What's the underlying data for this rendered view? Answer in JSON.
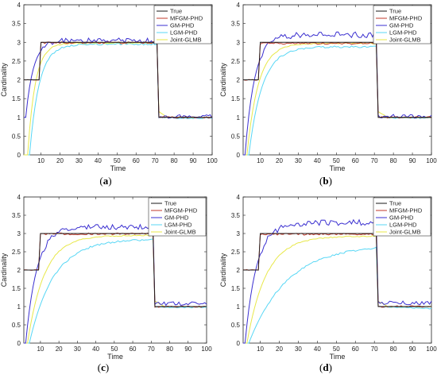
{
  "colors": {
    "True": "#1a1a1a",
    "MFGM-PHD": "#c0392b",
    "GM-PHD": "#3a2fd0",
    "LGM-PHD": "#58d7f5",
    "Joint-GLMB": "#e8e84a"
  },
  "chart_data": [
    {
      "type": "line",
      "panel_label": "(a)",
      "xlabel": "Time",
      "ylabel": "Cardinality",
      "xlim": [
        1,
        100
      ],
      "ylim": [
        0,
        4
      ],
      "xticks": [
        "10",
        "20",
        "30",
        "40",
        "50",
        "60",
        "70",
        "80",
        "90",
        "100"
      ],
      "yticks": [
        "0",
        "0.5",
        "1",
        "1.5",
        "2",
        "2.5",
        "3",
        "3.5",
        "4"
      ],
      "grid": false,
      "legend_position": "top-right",
      "legend": [
        "True",
        "MFGM-PHD",
        "GM-PHD",
        "LGM-PHD",
        "Joint-GLMB"
      ],
      "params": {
        "gm_start": 1.0,
        "gm_t": 4,
        "gm_plat": 3.05,
        "gm_amp": 0.07,
        "lgm_start": 0.0,
        "lgm_t": 5,
        "lgm_plat": 2.95,
        "jg_t": 4,
        "jg_plat": 2.98,
        "mf_plat": 2.99,
        "jit_end": 1.02
      },
      "x": [
        1,
        10,
        20,
        30,
        40,
        50,
        60,
        70,
        72,
        80,
        90,
        100
      ],
      "series": [
        {
          "name": "True",
          "values": [
            2,
            3,
            3,
            3,
            3,
            3,
            3,
            3,
            1,
            1,
            1,
            1
          ]
        },
        {
          "name": "MFGM-PHD",
          "values": [
            2.0,
            3.0,
            2.99,
            2.99,
            3.0,
            2.99,
            3.0,
            2.99,
            1.02,
            1.0,
            1.0,
            1.0
          ]
        },
        {
          "name": "GM-PHD",
          "values": [
            1.0,
            2.4,
            3.1,
            3.05,
            3.1,
            3.0,
            3.05,
            3.05,
            1.05,
            1.02,
            1.0,
            1.0
          ]
        },
        {
          "name": "LGM-PHD",
          "values": [
            0.0,
            1.6,
            2.9,
            2.95,
            2.95,
            2.92,
            2.95,
            2.95,
            1.05,
            1.0,
            1.0,
            1.0
          ]
        },
        {
          "name": "Joint-GLMB",
          "values": [
            0.0,
            2.3,
            2.95,
            2.98,
            2.98,
            2.98,
            2.98,
            2.98,
            1.1,
            1.0,
            1.0,
            1.0
          ]
        }
      ]
    },
    {
      "type": "line",
      "panel_label": "(b)",
      "xlabel": "Time",
      "ylabel": "Cardinality",
      "xlim": [
        1,
        100
      ],
      "ylim": [
        0,
        4
      ],
      "xticks": [
        "10",
        "20",
        "30",
        "40",
        "50",
        "60",
        "70",
        "80",
        "90",
        "100"
      ],
      "yticks": [
        "0",
        "0.5",
        "1",
        "1.5",
        "2",
        "2.5",
        "3",
        "3.5",
        "4"
      ],
      "grid": false,
      "legend_position": "top-right",
      "legend": [
        "True",
        "MFGM-PHD",
        "GM-PHD",
        "LGM-PHD",
        "Joint-GLMB"
      ],
      "params": {
        "gm_start": 0.0,
        "gm_t": 5,
        "gm_plat": 3.2,
        "gm_amp": 0.08,
        "lgm_start": 0.0,
        "lgm_t": 7,
        "lgm_plat": 2.88,
        "jg_t": 6,
        "jg_plat": 2.97,
        "mf_plat": 2.97,
        "jit_end": 1.03
      },
      "x": [
        1,
        10,
        20,
        30,
        40,
        50,
        60,
        70,
        72,
        80,
        90,
        100
      ],
      "series": [
        {
          "name": "True",
          "values": [
            2,
            3,
            3,
            3,
            3,
            3,
            3,
            3,
            1,
            1,
            1,
            1
          ]
        },
        {
          "name": "MFGM-PHD",
          "values": [
            2.0,
            2.98,
            2.98,
            2.97,
            2.97,
            2.98,
            2.97,
            2.96,
            1.02,
            1.0,
            1.0,
            1.0
          ]
        },
        {
          "name": "GM-PHD",
          "values": [
            0.0,
            2.2,
            3.1,
            3.2,
            3.2,
            3.25,
            3.2,
            3.2,
            1.1,
            1.05,
            1.05,
            1.05
          ]
        },
        {
          "name": "LGM-PHD",
          "values": [
            0.0,
            1.2,
            2.6,
            2.85,
            2.9,
            2.88,
            2.9,
            2.9,
            1.0,
            1.0,
            1.0,
            1.0
          ]
        },
        {
          "name": "Joint-GLMB",
          "values": [
            0.0,
            1.9,
            2.85,
            2.95,
            2.97,
            2.97,
            2.97,
            2.97,
            1.05,
            1.0,
            1.0,
            1.0
          ]
        }
      ]
    },
    {
      "type": "line",
      "panel_label": "(c)",
      "xlabel": "Time",
      "ylabel": "Cardinality",
      "xlim": [
        1,
        100
      ],
      "ylim": [
        0,
        4
      ],
      "xticks": [
        "10",
        "20",
        "30",
        "40",
        "50",
        "60",
        "70",
        "80",
        "90",
        "100"
      ],
      "yticks": [
        "0",
        "0.5",
        "1",
        "1.5",
        "2",
        "2.5",
        "3",
        "3.5",
        "4"
      ],
      "grid": false,
      "legend_position": "top-right",
      "legend": [
        "True",
        "MFGM-PHD",
        "GM-PHD",
        "LGM-PHD",
        "Joint-GLMB"
      ],
      "params": {
        "gm_start": 0.0,
        "gm_t": 6,
        "gm_plat": 3.18,
        "gm_amp": 0.07,
        "lgm_start": 0.0,
        "lgm_t": 13,
        "lgm_plat": 2.85,
        "jg_t": 9,
        "jg_plat": 2.95,
        "mf_plat": 2.99,
        "jit_end": 1.08
      },
      "x": [
        1,
        10,
        20,
        30,
        40,
        50,
        60,
        70,
        72,
        80,
        90,
        100
      ],
      "series": [
        {
          "name": "True",
          "values": [
            2,
            3,
            3,
            3,
            3,
            3,
            3,
            3,
            1,
            1,
            1,
            1
          ]
        },
        {
          "name": "MFGM-PHD",
          "values": [
            2.0,
            3.0,
            2.99,
            2.99,
            2.98,
            2.99,
            2.98,
            2.98,
            1.02,
            1.0,
            1.0,
            1.0
          ]
        },
        {
          "name": "GM-PHD",
          "values": [
            0.0,
            1.7,
            2.95,
            3.1,
            3.15,
            3.2,
            3.2,
            3.25,
            1.2,
            1.1,
            1.1,
            1.05
          ]
        },
        {
          "name": "LGM-PHD",
          "values": [
            0.0,
            0.6,
            1.8,
            2.5,
            2.7,
            2.75,
            2.8,
            2.85,
            1.0,
            1.0,
            0.98,
            0.98
          ]
        },
        {
          "name": "Joint-GLMB",
          "values": [
            0.0,
            1.2,
            2.4,
            2.85,
            2.93,
            2.95,
            2.95,
            2.95,
            1.1,
            1.0,
            1.0,
            1.0
          ]
        }
      ]
    },
    {
      "type": "line",
      "panel_label": "(d)",
      "xlabel": "Time",
      "ylabel": "Cardinality",
      "xlim": [
        1,
        100
      ],
      "ylim": [
        0,
        4
      ],
      "xticks": [
        "10",
        "20",
        "30",
        "40",
        "50",
        "60",
        "70",
        "80",
        "90",
        "100"
      ],
      "yticks": [
        "0",
        "0.5",
        "1",
        "1.5",
        "2",
        "2.5",
        "3",
        "3.5",
        "4"
      ],
      "grid": false,
      "legend_position": "top-right",
      "legend": [
        "True",
        "MFGM-PHD",
        "GM-PHD",
        "LGM-PHD",
        "Joint-GLMB"
      ],
      "params": {
        "gm_start": 0.0,
        "gm_t": 6,
        "gm_plat": 3.3,
        "gm_amp": 0.08,
        "lgm_start": 0.0,
        "lgm_t": 20,
        "lgm_plat": 2.7,
        "jg_t": 10,
        "jg_plat": 2.93,
        "mf_plat": 2.98,
        "jit_end": 1.1
      },
      "x": [
        1,
        10,
        20,
        30,
        40,
        50,
        60,
        70,
        72,
        80,
        90,
        100
      ],
      "series": [
        {
          "name": "True",
          "values": [
            2,
            3,
            3,
            3,
            3,
            3,
            3,
            3,
            1,
            1,
            1,
            1
          ]
        },
        {
          "name": "MFGM-PHD",
          "values": [
            1.95,
            2.98,
            2.98,
            2.97,
            2.97,
            2.98,
            2.97,
            2.98,
            1.02,
            1.0,
            1.0,
            1.0
          ]
        },
        {
          "name": "GM-PHD",
          "values": [
            0.0,
            1.6,
            3.0,
            3.3,
            3.3,
            3.35,
            3.3,
            3.3,
            1.15,
            1.1,
            1.1,
            1.1
          ]
        },
        {
          "name": "LGM-PHD",
          "values": [
            0.0,
            0.1,
            1.3,
            2.0,
            2.4,
            2.55,
            2.62,
            2.65,
            1.0,
            0.92,
            0.9,
            0.9
          ]
        },
        {
          "name": "Joint-GLMB",
          "values": [
            0.0,
            1.0,
            2.3,
            2.8,
            2.9,
            2.93,
            2.93,
            2.93,
            1.1,
            1.0,
            1.0,
            1.0
          ]
        }
      ]
    }
  ]
}
